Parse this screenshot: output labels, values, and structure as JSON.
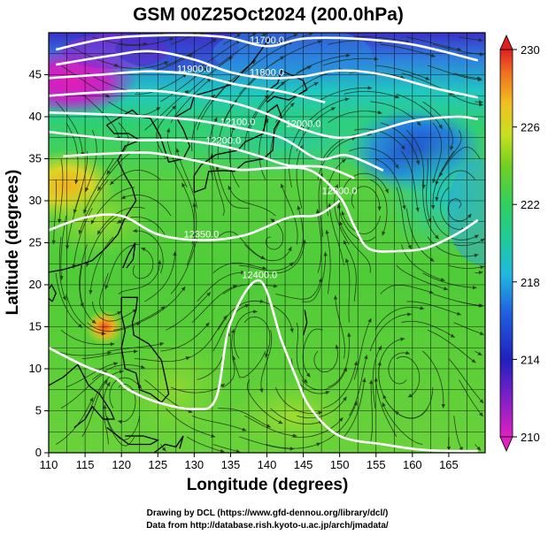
{
  "title": "GSM 00Z25Oct2024 (200.0hPa)",
  "credits": {
    "line1": "Drawing by DCL (https://www.gfd-dennou.org/library/dcl/)",
    "line2": "Data from http://database.rish.kyoto-u.ac.jp/arch/jmadata/"
  },
  "chart_data": {
    "type": "heatmap",
    "title": "GSM 00Z25Oct2024 (200.0hPa)",
    "xlabel": "Longitude (degrees)",
    "ylabel": "Latitude  (degrees)",
    "xlim": [
      110,
      170
    ],
    "ylim": [
      0,
      50
    ],
    "x_ticks": [
      110,
      115,
      120,
      125,
      130,
      135,
      140,
      145,
      150,
      155,
      160,
      165
    ],
    "y_ticks": [
      0,
      5,
      10,
      15,
      20,
      25,
      30,
      35,
      40,
      45
    ],
    "grid": true,
    "colorbar": {
      "range": [
        210,
        230
      ],
      "ticks": [
        210,
        214,
        218,
        222,
        226,
        230
      ],
      "colors": [
        "#e020c0",
        "#3020c0",
        "#20a8e0",
        "#30d070",
        "#60d020",
        "#c8e020",
        "#f0c020",
        "#f06020",
        "#e02020"
      ]
    },
    "contours": [
      {
        "label": "11700.0",
        "value": 11700,
        "points": [
          [
            111,
            48
          ],
          [
            118,
            49.3
          ],
          [
            126,
            49.7
          ],
          [
            134,
            49.5
          ],
          [
            140,
            48.4
          ],
          [
            145,
            49.3
          ],
          [
            152,
            49.3
          ],
          [
            160,
            48.6
          ],
          [
            169,
            46.7
          ]
        ]
      },
      {
        "label": "11800.0",
        "value": 11800,
        "points": [
          [
            111,
            46.2
          ],
          [
            118,
            47.2
          ],
          [
            124,
            47.8
          ],
          [
            130,
            46.8
          ],
          [
            135,
            45.3
          ],
          [
            140,
            44.6
          ],
          [
            145,
            44.8
          ],
          [
            150,
            45.5
          ],
          [
            156,
            45.0
          ],
          [
            163,
            43.4
          ],
          [
            169,
            42.3
          ]
        ]
      },
      {
        "label": "11900.0",
        "value": 11900,
        "points": [
          [
            110,
            44.6
          ],
          [
            117,
            45.0
          ],
          [
            124,
            45.4
          ],
          [
            130,
            45.0
          ],
          [
            136,
            43.8
          ],
          [
            142,
            43.0
          ],
          [
            148,
            41.7
          ]
        ]
      },
      {
        "label": "12000.0",
        "value": 12000,
        "points": [
          [
            110,
            42.5
          ],
          [
            117,
            42.9
          ],
          [
            124,
            43.1
          ],
          [
            130,
            42.5
          ],
          [
            136,
            41.5
          ],
          [
            141,
            40.0
          ],
          [
            145,
            38.5
          ],
          [
            150,
            37.5
          ],
          [
            155,
            38.3
          ],
          [
            160,
            39.5
          ],
          [
            166,
            40.0
          ],
          [
            169,
            39.7
          ]
        ]
      },
      {
        "label": "12100.0",
        "value": 12100,
        "points": [
          [
            110,
            40.5
          ],
          [
            117,
            40.3
          ],
          [
            124,
            40.0
          ],
          [
            130,
            39.6
          ],
          [
            136,
            38.7
          ],
          [
            142,
            37.5
          ],
          [
            147,
            35.0
          ],
          [
            151,
            35.4
          ],
          [
            156,
            33.6
          ]
        ]
      },
      {
        "label": "12200.0",
        "value": 12200,
        "points": [
          [
            110,
            38.2
          ],
          [
            116,
            37.6
          ],
          [
            122,
            37.2
          ],
          [
            128,
            37.2
          ],
          [
            134,
            36.5
          ],
          [
            139,
            35.3
          ],
          [
            143,
            34.2
          ],
          [
            148,
            34.0
          ],
          [
            152,
            32.7
          ]
        ]
      },
      {
        "label": "12300.0",
        "value": 12300,
        "points": [
          [
            112,
            35.3
          ],
          [
            118,
            35.6
          ],
          [
            124,
            35.7
          ],
          [
            130,
            34.8
          ],
          [
            136,
            33.7
          ],
          [
            141,
            33.9
          ],
          [
            146,
            33.6
          ],
          [
            150,
            30.5
          ],
          [
            152,
            27.0
          ],
          [
            154,
            24.3
          ],
          [
            158,
            24.0
          ],
          [
            162,
            24.4
          ],
          [
            166,
            26.0
          ],
          [
            169,
            27.7
          ]
        ]
      },
      {
        "label": "12350.0",
        "value": 12350,
        "points": [
          [
            110,
            26.5
          ],
          [
            115,
            28.0
          ],
          [
            120,
            28.2
          ],
          [
            125,
            26.0
          ],
          [
            131,
            25.3
          ],
          [
            137,
            25.9
          ],
          [
            143,
            28.0
          ],
          [
            147,
            28.3
          ],
          [
            150,
            30.0
          ]
        ]
      },
      {
        "label": "12400.0",
        "value": 12400,
        "points": [
          [
            110,
            12.5
          ],
          [
            115,
            10.3
          ],
          [
            119,
            9.0
          ],
          [
            121,
            7.5
          ],
          [
            125,
            6.0
          ],
          [
            130,
            5.2
          ],
          [
            133,
            6.5
          ],
          [
            135,
            15.5
          ],
          [
            139,
            20.5
          ],
          [
            142,
            13.4
          ],
          [
            144,
            9.0
          ],
          [
            146,
            5.3
          ],
          [
            150,
            2.0
          ],
          [
            156,
            1.0
          ],
          [
            162,
            0.3
          ],
          [
            169,
            0.2
          ]
        ]
      }
    ],
    "colorbar_label_note": "",
    "map": "coastlines of East Asia, Japan, Philippines, Korea"
  }
}
